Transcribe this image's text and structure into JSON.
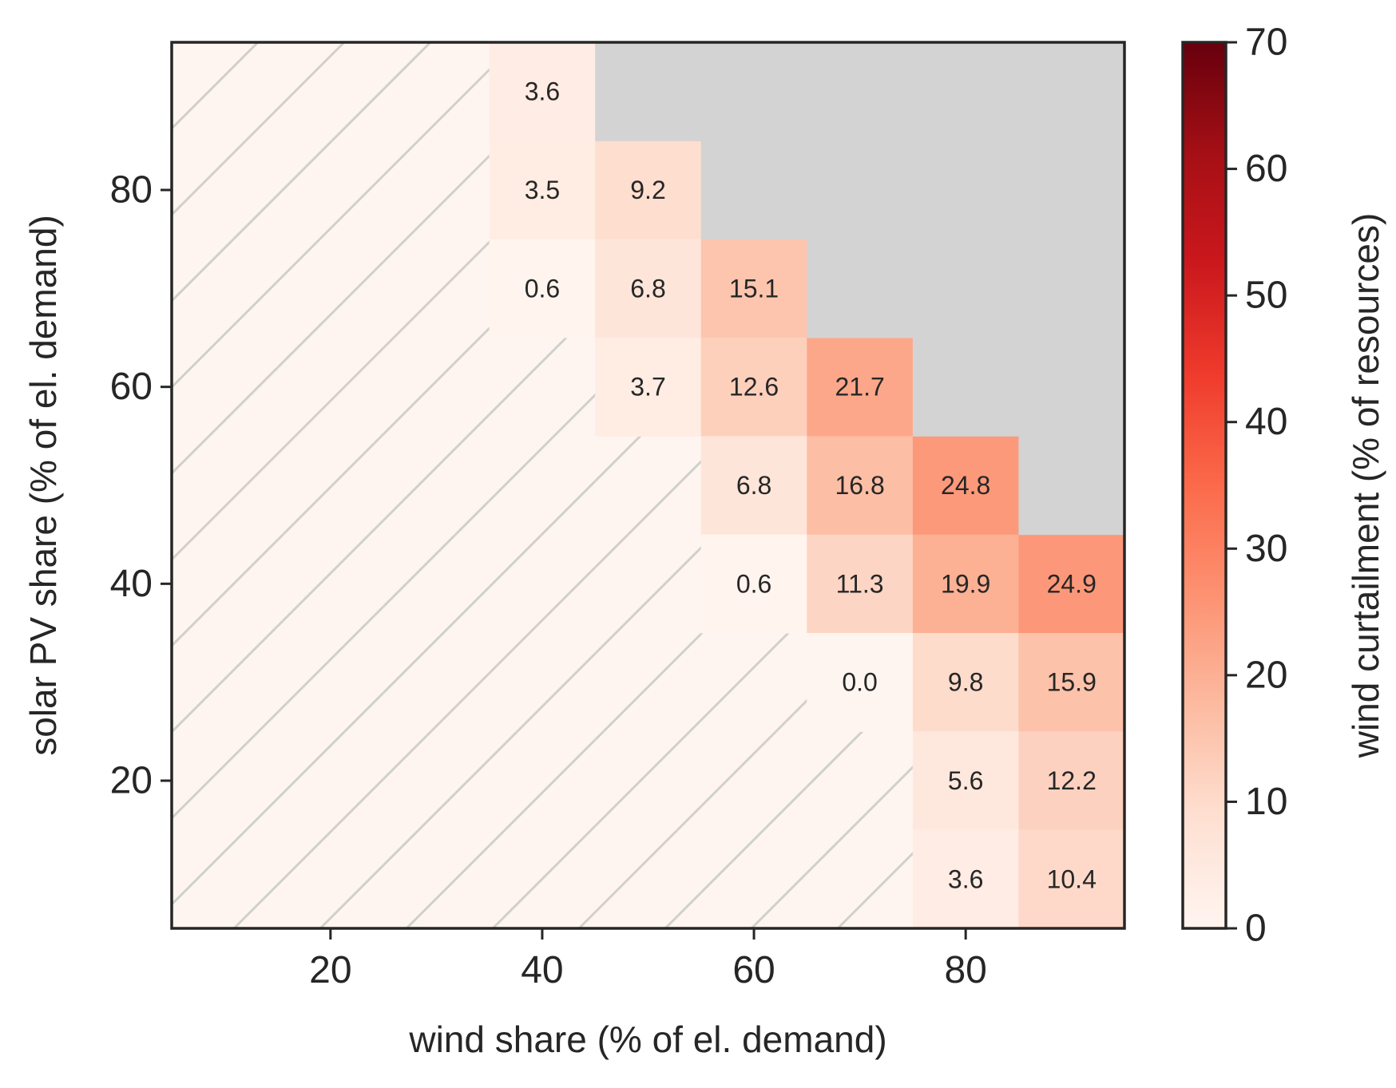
{
  "chart_data": {
    "type": "heatmap",
    "title": "",
    "xlabel": "wind share (% of el. demand)",
    "ylabel": "solar PV share (% of el. demand)",
    "colorbar_label": "wind curtailment (% of resources)",
    "x_centers": [
      10,
      20,
      30,
      40,
      50,
      60,
      70,
      80,
      90
    ],
    "y_centers": [
      10,
      20,
      30,
      40,
      50,
      60,
      70,
      80,
      90
    ],
    "xlim": [
      5,
      95
    ],
    "ylim": [
      5,
      95
    ],
    "xticks": [
      20,
      40,
      60,
      80
    ],
    "yticks": [
      20,
      40,
      60,
      80
    ],
    "colorbar_range": [
      0,
      70
    ],
    "colorbar_ticks": [
      0,
      10,
      20,
      30,
      40,
      50,
      60,
      70
    ],
    "colormap": "Reds",
    "colormap_stops": [
      "#fff5f0",
      "#fee0d2",
      "#fcbba1",
      "#fc9272",
      "#fb6a4a",
      "#ef3b2c",
      "#cb181d",
      "#a50f15",
      "#67000d"
    ],
    "unavailable_color": "#d3d3d3",
    "hatch_color": "#d0d0cc",
    "background_color": "#fff5f0",
    "grid": false,
    "cells": [
      {
        "wind": 40,
        "solar": 90,
        "value": 3.6,
        "label": "3.6"
      },
      {
        "wind": 40,
        "solar": 80,
        "value": 3.5,
        "label": "3.5"
      },
      {
        "wind": 50,
        "solar": 80,
        "value": 9.2,
        "label": "9.2"
      },
      {
        "wind": 40,
        "solar": 70,
        "value": 0.6,
        "label": "0.6"
      },
      {
        "wind": 50,
        "solar": 70,
        "value": 6.8,
        "label": "6.8"
      },
      {
        "wind": 60,
        "solar": 70,
        "value": 15.1,
        "label": "15.1"
      },
      {
        "wind": 50,
        "solar": 60,
        "value": 3.7,
        "label": "3.7"
      },
      {
        "wind": 60,
        "solar": 60,
        "value": 12.6,
        "label": "12.6"
      },
      {
        "wind": 70,
        "solar": 60,
        "value": 21.7,
        "label": "21.7"
      },
      {
        "wind": 60,
        "solar": 50,
        "value": 6.8,
        "label": "6.8"
      },
      {
        "wind": 70,
        "solar": 50,
        "value": 16.8,
        "label": "16.8"
      },
      {
        "wind": 80,
        "solar": 50,
        "value": 24.8,
        "label": "24.8"
      },
      {
        "wind": 60,
        "solar": 40,
        "value": 0.6,
        "label": "0.6"
      },
      {
        "wind": 70,
        "solar": 40,
        "value": 11.3,
        "label": "11.3"
      },
      {
        "wind": 80,
        "solar": 40,
        "value": 19.9,
        "label": "19.9"
      },
      {
        "wind": 90,
        "solar": 40,
        "value": 24.9,
        "label": "24.9"
      },
      {
        "wind": 70,
        "solar": 30,
        "value": 0.0,
        "label": "0.0"
      },
      {
        "wind": 80,
        "solar": 30,
        "value": 9.8,
        "label": "9.8"
      },
      {
        "wind": 90,
        "solar": 30,
        "value": 15.9,
        "label": "15.9"
      },
      {
        "wind": 80,
        "solar": 20,
        "value": 5.6,
        "label": "5.6"
      },
      {
        "wind": 90,
        "solar": 20,
        "value": 12.2,
        "label": "12.2"
      },
      {
        "wind": 80,
        "solar": 10,
        "value": 3.6,
        "label": "3.6"
      },
      {
        "wind": 90,
        "solar": 10,
        "value": 10.4,
        "label": "10.4"
      }
    ],
    "unavailable_cells": [
      {
        "wind": 50,
        "solar": 90
      },
      {
        "wind": 60,
        "solar": 90
      },
      {
        "wind": 70,
        "solar": 90
      },
      {
        "wind": 80,
        "solar": 90
      },
      {
        "wind": 90,
        "solar": 90
      },
      {
        "wind": 60,
        "solar": 80
      },
      {
        "wind": 70,
        "solar": 80
      },
      {
        "wind": 80,
        "solar": 80
      },
      {
        "wind": 90,
        "solar": 80
      },
      {
        "wind": 70,
        "solar": 70
      },
      {
        "wind": 80,
        "solar": 70
      },
      {
        "wind": 90,
        "solar": 70
      },
      {
        "wind": 80,
        "solar": 60
      },
      {
        "wind": 90,
        "solar": 60
      },
      {
        "wind": 90,
        "solar": 50
      }
    ],
    "hatched_cells": [
      {
        "wind": 10,
        "solar": 10
      },
      {
        "wind": 10,
        "solar": 20
      },
      {
        "wind": 10,
        "solar": 30
      },
      {
        "wind": 10,
        "solar": 40
      },
      {
        "wind": 10,
        "solar": 50
      },
      {
        "wind": 10,
        "solar": 60
      },
      {
        "wind": 10,
        "solar": 70
      },
      {
        "wind": 10,
        "solar": 80
      },
      {
        "wind": 10,
        "solar": 90
      },
      {
        "wind": 20,
        "solar": 10
      },
      {
        "wind": 20,
        "solar": 20
      },
      {
        "wind": 20,
        "solar": 30
      },
      {
        "wind": 20,
        "solar": 40
      },
      {
        "wind": 20,
        "solar": 50
      },
      {
        "wind": 20,
        "solar": 60
      },
      {
        "wind": 20,
        "solar": 70
      },
      {
        "wind": 20,
        "solar": 80
      },
      {
        "wind": 20,
        "solar": 90
      },
      {
        "wind": 30,
        "solar": 10
      },
      {
        "wind": 30,
        "solar": 20
      },
      {
        "wind": 30,
        "solar": 30
      },
      {
        "wind": 30,
        "solar": 40
      },
      {
        "wind": 30,
        "solar": 50
      },
      {
        "wind": 30,
        "solar": 60
      },
      {
        "wind": 30,
        "solar": 70
      },
      {
        "wind": 30,
        "solar": 80
      },
      {
        "wind": 30,
        "solar": 90
      },
      {
        "wind": 40,
        "solar": 10
      },
      {
        "wind": 40,
        "solar": 20
      },
      {
        "wind": 40,
        "solar": 30
      },
      {
        "wind": 40,
        "solar": 40
      },
      {
        "wind": 40,
        "solar": 50
      },
      {
        "wind": 40,
        "solar": 60
      },
      {
        "wind": 50,
        "solar": 10
      },
      {
        "wind": 50,
        "solar": 20
      },
      {
        "wind": 50,
        "solar": 30
      },
      {
        "wind": 50,
        "solar": 40
      },
      {
        "wind": 50,
        "solar": 50
      },
      {
        "wind": 60,
        "solar": 10
      },
      {
        "wind": 60,
        "solar": 20
      },
      {
        "wind": 60,
        "solar": 30
      },
      {
        "wind": 70,
        "solar": 10
      },
      {
        "wind": 70,
        "solar": 20
      }
    ]
  }
}
